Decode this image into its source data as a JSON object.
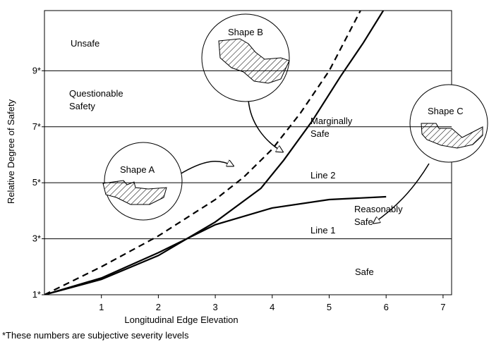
{
  "chart_data": {
    "type": "line",
    "x_label": "Longitudinal Edge Elevation",
    "y_label": "Relative Degree of Safety",
    "xlim": [
      0,
      7.15
    ],
    "ylim": [
      1,
      11.15
    ],
    "xticks": [
      1,
      2,
      3,
      4,
      5,
      6,
      7
    ],
    "yticks": [
      {
        "value": 1,
        "label": "1*"
      },
      {
        "value": 3,
        "label": "3*"
      },
      {
        "value": 5,
        "label": "5*"
      },
      {
        "value": 7,
        "label": "7*"
      },
      {
        "value": 9,
        "label": "9*"
      }
    ],
    "grid": true,
    "series": [
      {
        "color": "#000000",
        "dashed": false,
        "x": [
          0,
          1,
          2,
          3,
          3.8,
          4.2,
          4.7,
          5.2,
          5.6,
          5.95
        ],
        "values": [
          1,
          1.55,
          2.4,
          3.6,
          4.8,
          5.8,
          7.2,
          8.8,
          10,
          11.15
        ]
      },
      {
        "color": "#000000",
        "dashed": true,
        "x": [
          0,
          1,
          2,
          3,
          3.5,
          4,
          4.5,
          5,
          5.55
        ],
        "values": [
          1,
          2,
          3.1,
          4.4,
          5.2,
          6.2,
          7.5,
          9,
          11.15
        ]
      },
      {
        "color": "#000000",
        "dashed": false,
        "x": [
          0,
          1,
          2,
          2.5,
          3,
          4,
          5,
          6
        ],
        "values": [
          1,
          1.6,
          2.5,
          3,
          3.5,
          4.1,
          4.4,
          4.5
        ]
      }
    ],
    "annotations": [
      [
        "Unsafe"
      ],
      [
        "Questionable",
        "Safety"
      ],
      [
        "Marginally",
        "Safe"
      ],
      [
        "Reasonably",
        "Safe"
      ],
      [
        "Safe"
      ],
      [
        "Line 2"
      ],
      [
        "Line 1"
      ],
      [
        "Shape A"
      ],
      [
        "Shape B"
      ],
      [
        "Shape C"
      ]
    ],
    "footnote": "*These numbers are subjective severity levels"
  }
}
